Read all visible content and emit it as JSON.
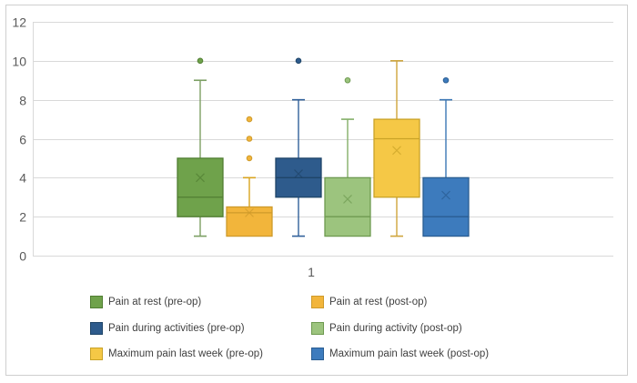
{
  "figure": {
    "background": "#FFFFFF",
    "frame_border_color": "#CFCFCF",
    "gridline_color": "#D9D9D9",
    "axis_label_color": "#595959",
    "legend_text_color": "#3F3F3F"
  },
  "chart_data": {
    "type": "boxplot",
    "title": "",
    "categories": [
      "1"
    ],
    "xlabel": "",
    "ylabel": "",
    "y_axis": {
      "min": 0,
      "max": 12,
      "tick_step": 2,
      "ticks": [
        0,
        2,
        4,
        6,
        8,
        10,
        12
      ]
    },
    "grid": true,
    "legend_position": "bottom",
    "series": [
      {
        "name": "Pain at rest (pre-op)",
        "fill": "#6FA24B",
        "stroke": "#507E32",
        "whisker": "#7C9F63",
        "min": 1,
        "q1": 2,
        "median": 3,
        "q3": 5,
        "max": 9,
        "mean": 4.0,
        "outliers": [
          10
        ]
      },
      {
        "name": "Pain at rest (post-op)",
        "fill": "#F2B53B",
        "stroke": "#CE9A2B",
        "whisker": "#D9A420",
        "min": 1,
        "q1": 1,
        "median": 2.2,
        "q3": 2.5,
        "max": 4,
        "mean": 2.2,
        "outliers": [
          5,
          6,
          7
        ]
      },
      {
        "name": "Pain during activities (pre-op)",
        "fill": "#2E5B8C",
        "stroke": "#1F4568",
        "whisker": "#31609A",
        "min": 1,
        "q1": 3,
        "median": 4,
        "q3": 5,
        "max": 8,
        "mean": 4.2,
        "outliers": [
          10
        ]
      },
      {
        "name": "Pain during activity (post-op)",
        "fill": "#9CC47E",
        "stroke": "#6E9A50",
        "whisker": "#84AF68",
        "min": 1,
        "q1": 1,
        "median": 2,
        "q3": 4,
        "max": 7,
        "mean": 2.9,
        "outliers": [
          9
        ]
      },
      {
        "name": "Maximum pain last week (pre-op)",
        "fill": "#F5C846",
        "stroke": "#C9A227",
        "whisker": "#CFA53C",
        "min": 1,
        "q1": 3,
        "median": 6,
        "q3": 7,
        "max": 10,
        "mean": 5.4,
        "outliers": []
      },
      {
        "name": "Maximum pain last week (post-op)",
        "fill": "#3D7BBD",
        "stroke": "#2A5D92",
        "whisker": "#3C77B5",
        "min": 1,
        "q1": 1,
        "median": 2,
        "q3": 4,
        "max": 8,
        "mean": 3.1,
        "outliers": [
          9
        ]
      }
    ],
    "legend": {
      "columns": 2,
      "order_row_major": [
        "Pain at rest (pre-op)",
        "Pain at rest (post-op)",
        "Pain during activities (pre-op)",
        "Pain during activity (post-op)",
        "Maximum pain last week (pre-op)",
        "Maximum pain last week (post-op)"
      ]
    }
  }
}
